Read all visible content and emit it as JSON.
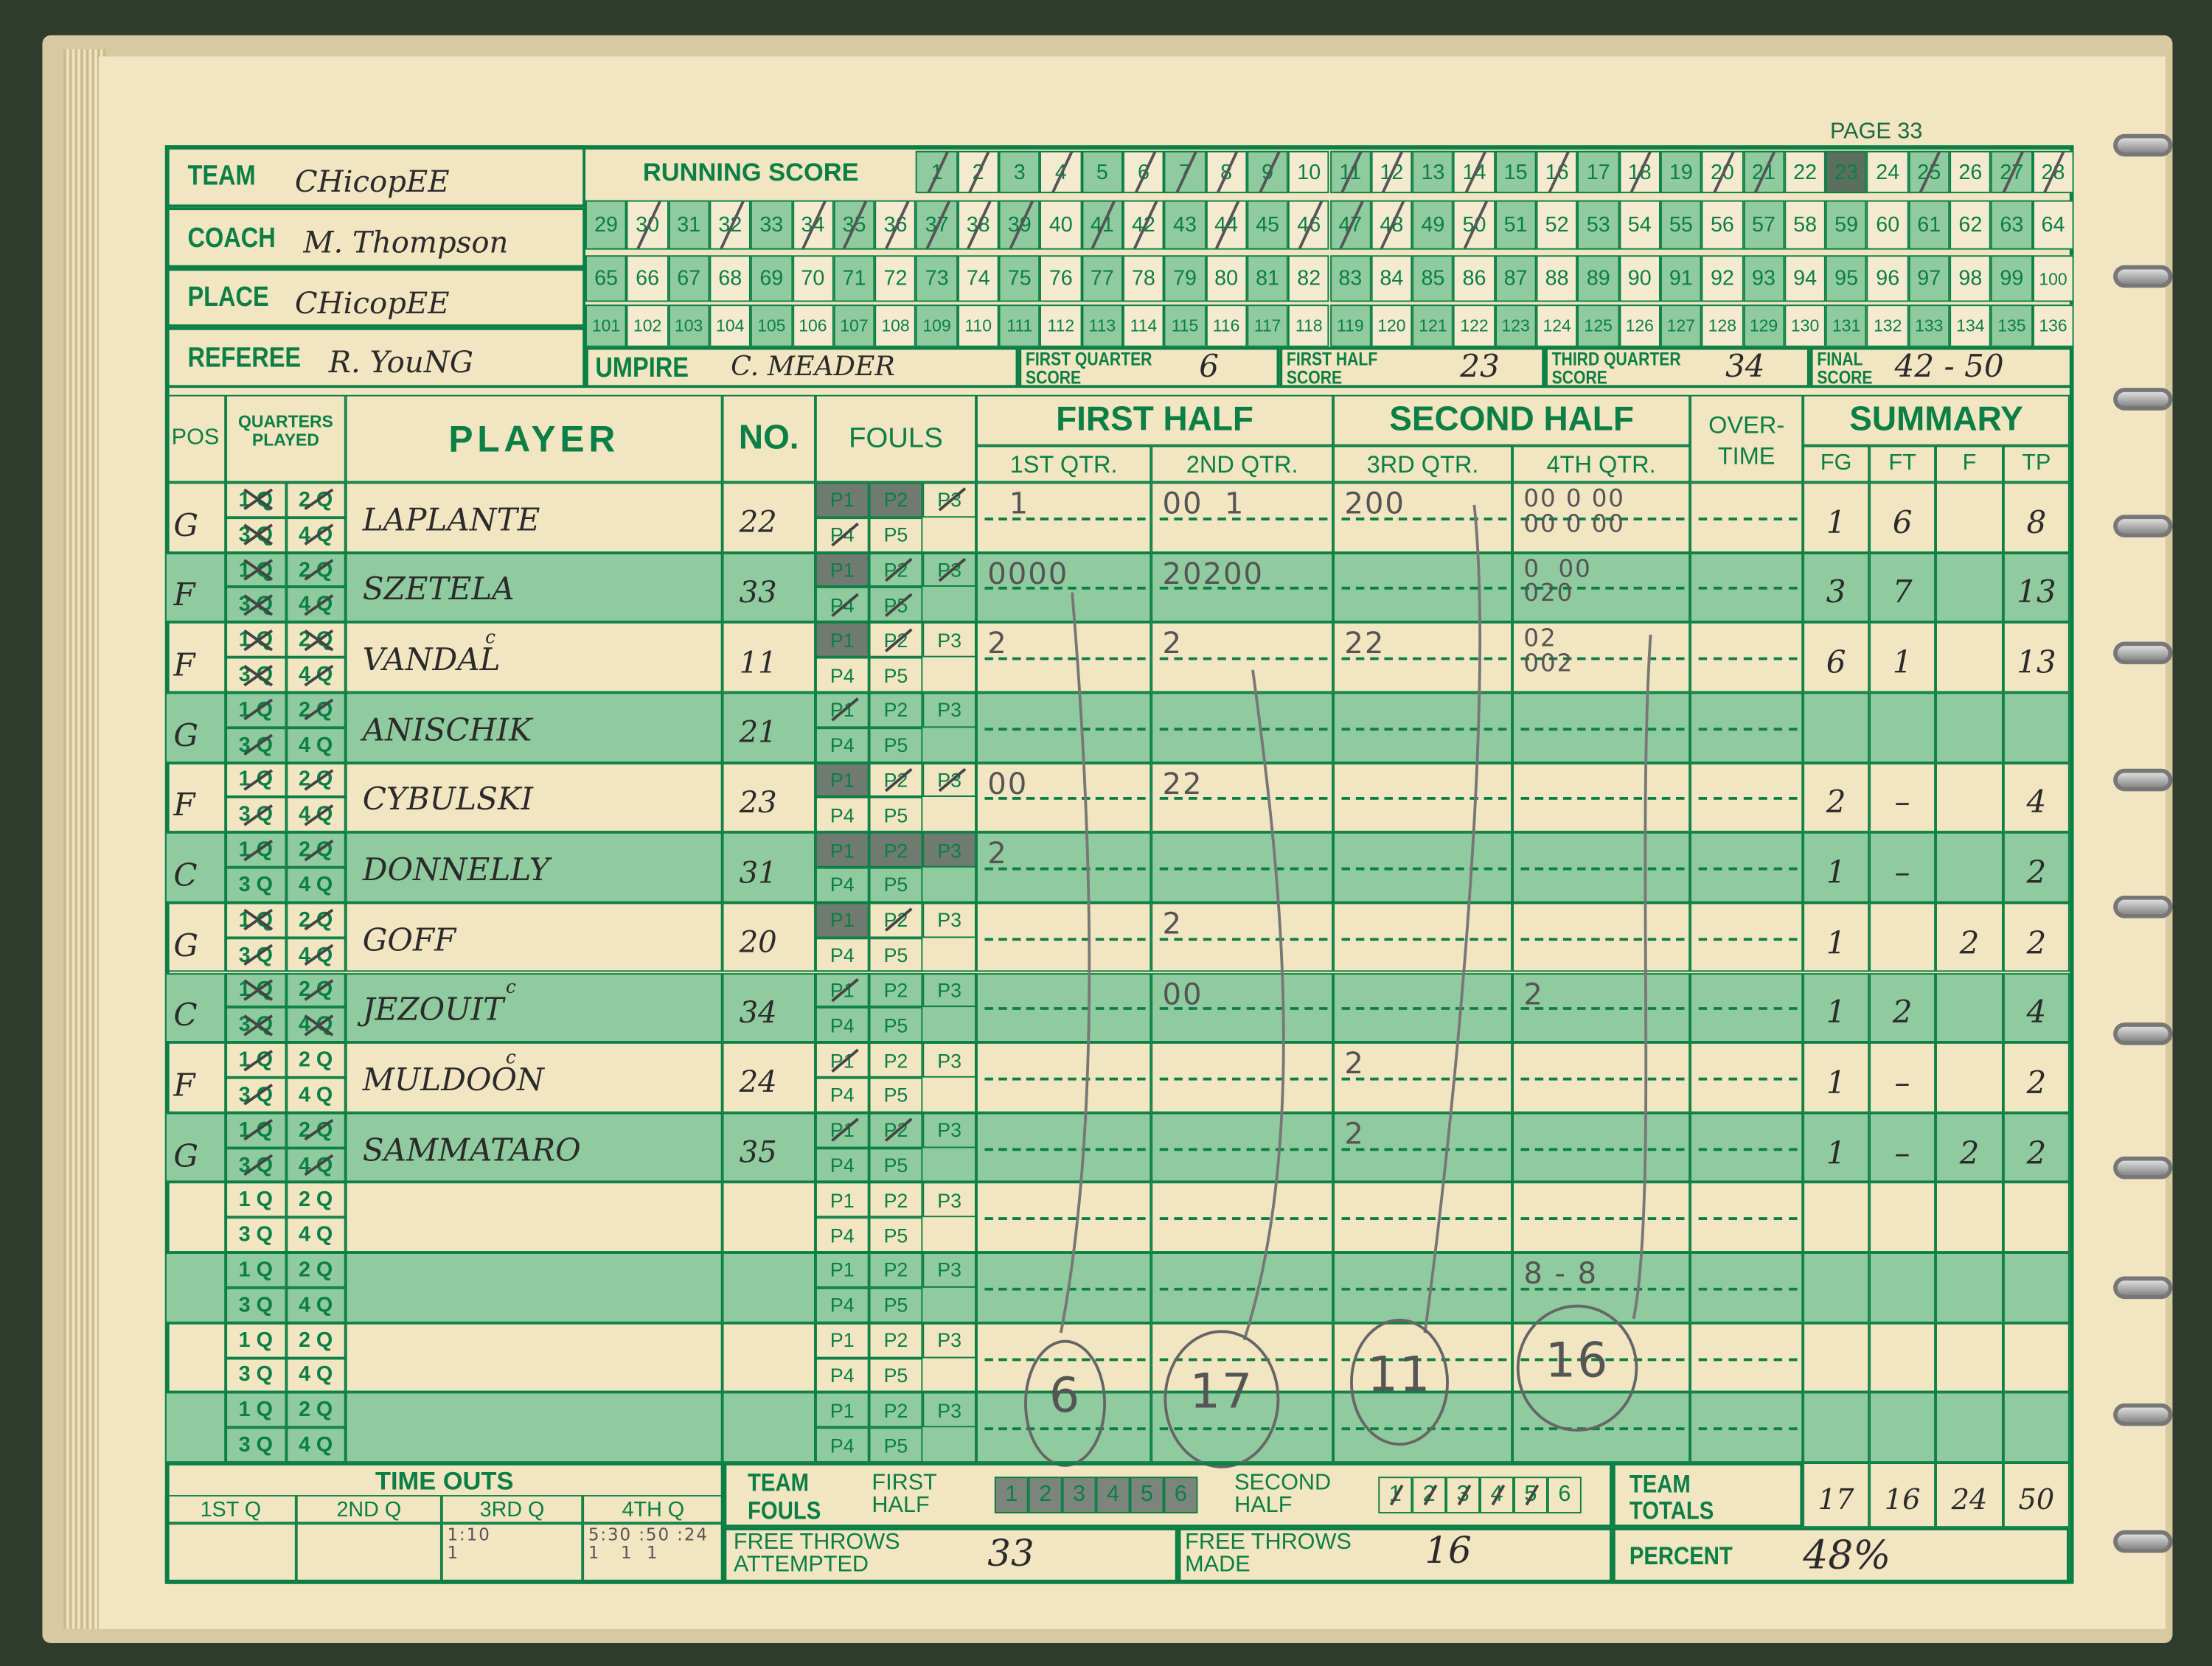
{
  "page_label": "PAGE 33",
  "header": {
    "team_label": "TEAM",
    "team": "CHicopEE",
    "coach_label": "COACH",
    "coach": "M. Thompson",
    "place_label": "PLACE",
    "place": "CHicopEE",
    "referee_label": "REFEREE",
    "referee": "R. YouNG",
    "umpire_label": "UMPIRE",
    "umpire": "C. MEADER"
  },
  "running_score": {
    "label": "RUNNING SCORE",
    "rows": [
      [
        1,
        28
      ],
      [
        29,
        64
      ],
      [
        65,
        100
      ],
      [
        101,
        136
      ]
    ],
    "marked": [
      1,
      2,
      4,
      6,
      7,
      8,
      9,
      11,
      12,
      14,
      16,
      18,
      20,
      21,
      25,
      27,
      28,
      30,
      32,
      34,
      35,
      36,
      37,
      38,
      39,
      41,
      42,
      44,
      46,
      47,
      48,
      50
    ],
    "filled": [
      23
    ]
  },
  "period_scores": [
    {
      "label_1": "FIRST QUARTER",
      "label_2": "SCORE",
      "value": "6"
    },
    {
      "label_1": "FIRST HALF",
      "label_2": "SCORE",
      "value": "23"
    },
    {
      "label_1": "THIRD QUARTER",
      "label_2": "SCORE",
      "value": "34"
    },
    {
      "label_1": "FINAL",
      "label_2": "SCORE",
      "value": "42 - 50"
    }
  ],
  "columns": {
    "pos": "POS",
    "quarters_1": "QUARTERS",
    "quarters_2": "PLAYED",
    "player": "PLAYER",
    "no": "NO.",
    "fouls": "FOULS",
    "first_half": "FIRST HALF",
    "second_half": "SECOND HALF",
    "overtime_1": "OVER-",
    "overtime_2": "TIME",
    "summary": "SUMMARY",
    "q1": "1ST QTR.",
    "q2": "2ND QTR.",
    "q3": "3RD QTR.",
    "q4": "4TH QTR.",
    "fg": "FG",
    "ft": "FT",
    "f": "F",
    "tp": "TP"
  },
  "quarter_labels": [
    "1 Q",
    "2 Q",
    "3 Q",
    "4 Q"
  ],
  "foul_labels": [
    "P1",
    "P2",
    "P3",
    "P4",
    "P5"
  ],
  "players": [
    {
      "pos": "G",
      "name": "LAPLANTE",
      "captain": "",
      "no": "22",
      "quarters": [
        "x",
        "/",
        "x",
        "/"
      ],
      "fouls": [
        "x",
        "x",
        "/",
        "/",
        ""
      ],
      "q1": "  1",
      "q2": "00  1",
      "q3": "200",
      "q4": "00 0 00\n00 0 00",
      "fg": "1",
      "ft": "6",
      "f": "",
      "tp": "8"
    },
    {
      "pos": "F",
      "name": "SZETELA",
      "captain": "",
      "no": "33",
      "quarters": [
        "x",
        "/",
        "x",
        "/"
      ],
      "fouls": [
        "x",
        "/",
        "/",
        "/",
        "/"
      ],
      "q1": "0000",
      "q2": "20200",
      "q3": "",
      "q4": "0  00\n020",
      "fg": "3",
      "ft": "7",
      "f": "",
      "tp": "13"
    },
    {
      "pos": "F",
      "name": "VANDAL",
      "captain": "c",
      "no": "11",
      "quarters": [
        "x",
        "x",
        "x",
        "/"
      ],
      "fouls": [
        "x",
        "/",
        "",
        "",
        ""
      ],
      "q1": "2",
      "q2": "2",
      "q3": "22",
      "q4": "02\n002",
      "fg": "6",
      "ft": "1",
      "f": "",
      "tp": "13"
    },
    {
      "pos": "G",
      "name": "ANISCHIK",
      "captain": "",
      "no": "21",
      "quarters": [
        "/",
        "/",
        "/",
        ""
      ],
      "fouls": [
        "/",
        "",
        "",
        "",
        ""
      ],
      "q1": "",
      "q2": "",
      "q3": "",
      "q4": "",
      "fg": "",
      "ft": "",
      "f": "",
      "tp": ""
    },
    {
      "pos": "F",
      "name": "CYBULSKI",
      "captain": "",
      "no": "23",
      "quarters": [
        "/",
        "/",
        "/",
        "/"
      ],
      "fouls": [
        "x",
        "/",
        "/",
        "",
        ""
      ],
      "q1": "00",
      "q2": "22",
      "q3": "",
      "q4": "",
      "fg": "2",
      "ft": "–",
      "f": "",
      "tp": "4"
    },
    {
      "pos": "C",
      "name": "DONNELLY",
      "captain": "",
      "no": "31",
      "quarters": [
        "/",
        "/",
        "",
        ""
      ],
      "fouls": [
        "x",
        "x",
        "x",
        "",
        ""
      ],
      "q1": "2",
      "q2": "",
      "q3": "",
      "q4": "",
      "fg": "1",
      "ft": "–",
      "f": "",
      "tp": "2"
    },
    {
      "pos": "G",
      "name": "GOFF",
      "captain": "",
      "no": "20",
      "quarters": [
        "x",
        "/",
        "/",
        "/"
      ],
      "fouls": [
        "x",
        "/",
        "",
        "",
        ""
      ],
      "q1": "",
      "q2": "2",
      "q3": "",
      "q4": "",
      "fg": "1",
      "ft": "",
      "f": "2",
      "tp": "2"
    },
    {
      "pos": "C",
      "name": "JEZOUIT",
      "captain": "c",
      "no": "34",
      "quarters": [
        "x",
        "/",
        "x",
        "x"
      ],
      "fouls": [
        "/",
        "",
        "",
        "",
        ""
      ],
      "q1": "",
      "q2": "00",
      "q3": "",
      "q4": "2",
      "fg": "1",
      "ft": "2",
      "f": "",
      "tp": "4"
    },
    {
      "pos": "F",
      "name": "MULDOON",
      "captain": "c",
      "no": "24",
      "quarters": [
        "/",
        "",
        "/",
        ""
      ],
      "fouls": [
        "/",
        "",
        "",
        "",
        ""
      ],
      "q1": "",
      "q2": "",
      "q3": "2",
      "q4": "",
      "fg": "1",
      "ft": "–",
      "f": "",
      "tp": "2"
    },
    {
      "pos": "G",
      "name": "SAMMATARO",
      "captain": "",
      "no": "35",
      "quarters": [
        "/",
        "/",
        "/",
        "/"
      ],
      "fouls": [
        "/",
        "/",
        "",
        "",
        ""
      ],
      "q1": "",
      "q2": "",
      "q3": "2",
      "q4": "",
      "fg": "1",
      "ft": "–",
      "f": "2",
      "tp": "2"
    },
    {
      "pos": "",
      "name": "",
      "captain": "",
      "no": "",
      "quarters": [
        "",
        "",
        "",
        ""
      ],
      "fouls": [
        "",
        "",
        "",
        "",
        ""
      ],
      "q1": "",
      "q2": "",
      "q3": "",
      "q4": "",
      "fg": "",
      "ft": "",
      "f": "",
      "tp": ""
    },
    {
      "pos": "",
      "name": "",
      "captain": "",
      "no": "",
      "quarters": [
        "",
        "",
        "",
        ""
      ],
      "fouls": [
        "",
        "",
        "",
        "",
        ""
      ],
      "q1": "",
      "q2": "",
      "q3": "",
      "q4": "8 - 8",
      "fg": "",
      "ft": "",
      "f": "",
      "tp": ""
    },
    {
      "pos": "",
      "name": "",
      "captain": "",
      "no": "",
      "quarters": [
        "",
        "",
        "",
        ""
      ],
      "fouls": [
        "",
        "",
        "",
        "",
        ""
      ],
      "q1": "",
      "q2": "",
      "q3": "",
      "q4": "",
      "fg": "",
      "ft": "",
      "f": "",
      "tp": ""
    },
    {
      "pos": "",
      "name": "",
      "captain": "",
      "no": "",
      "quarters": [
        "",
        "",
        "",
        ""
      ],
      "fouls": [
        "",
        "",
        "",
        "",
        ""
      ],
      "q1": "",
      "q2": "",
      "q3": "",
      "q4": "",
      "fg": "",
      "ft": "",
      "f": "",
      "tp": ""
    }
  ],
  "quarter_totals": [
    "6",
    "17",
    "11",
    "16"
  ],
  "bottom": {
    "time_outs_label": "TIME OUTS",
    "time_out_quarters": [
      "1ST Q",
      "2ND Q",
      "3RD Q",
      "4TH Q"
    ],
    "time_out_entries": [
      "",
      "",
      "1:10\n1",
      "5:30 :50 :24\n1   1  1"
    ],
    "team_label": "TEAM",
    "fouls_label": "FOULS",
    "first_label": "FIRST",
    "second_label": "SECOND",
    "half_label": "HALF",
    "foul_boxes": [
      "1",
      "2",
      "3",
      "4",
      "5",
      "6"
    ],
    "first_half_fouls": 6,
    "second_half_fouls": 5,
    "fta_label_1": "FREE THROWS",
    "fta_label_2": "ATTEMPTED",
    "fta": "33",
    "ftm_label_1": "FREE THROWS",
    "ftm_label_2": "MADE",
    "ftm": "16",
    "team_totals_1": "TEAM",
    "team_totals_2": "TOTALS",
    "totals": {
      "fg": "17",
      "ft": "16",
      "f": "24",
      "tp": "50"
    },
    "percent_label": "PERCENT",
    "percent": "48%"
  },
  "colors": {
    "ink_green": "#0b7f45",
    "shade_green": "#8fcb9e",
    "paper": "#f2e5c2",
    "pencil": "#555555"
  }
}
